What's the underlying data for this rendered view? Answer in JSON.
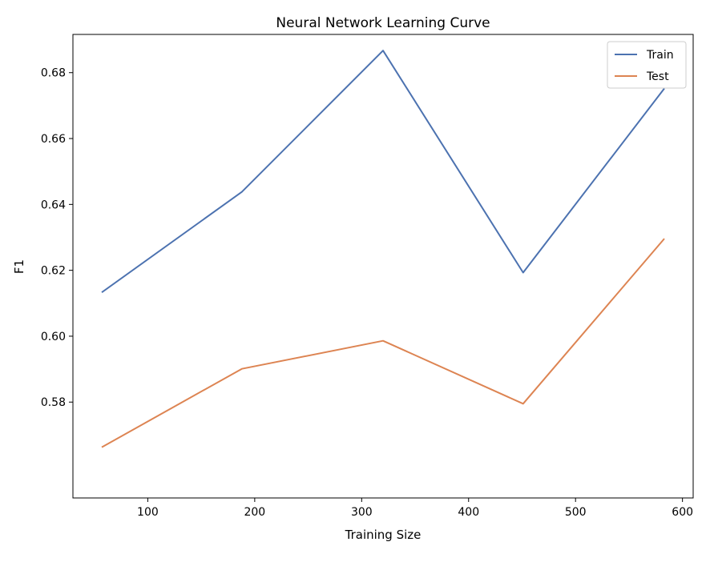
{
  "chart_data": {
    "type": "line",
    "title": "Neural Network Learning Curve",
    "xlabel": "Training Size",
    "ylabel": "F1",
    "x": [
      57,
      188,
      320,
      451,
      583
    ],
    "series": [
      {
        "name": "Train",
        "color": "#4c72b0",
        "values": [
          0.6133,
          0.6438,
          0.6867,
          0.6193,
          0.6752
        ]
      },
      {
        "name": "Test",
        "color": "#dd8452",
        "values": [
          0.5663,
          0.5901,
          0.5986,
          0.5795,
          0.6296
        ]
      }
    ],
    "xlim": [
      30,
      610
    ],
    "ylim": [
      0.5509,
      0.6916
    ],
    "xticks": [
      100,
      200,
      300,
      400,
      500,
      600
    ],
    "yticks": [
      0.58,
      0.6,
      0.62,
      0.64,
      0.66,
      0.68
    ],
    "xtick_labels": [
      "100",
      "200",
      "300",
      "400",
      "500",
      "600"
    ],
    "ytick_labels": [
      "0.58",
      "0.60",
      "0.62",
      "0.64",
      "0.66",
      "0.68"
    ],
    "grid": false,
    "legend_position": "top-right"
  }
}
